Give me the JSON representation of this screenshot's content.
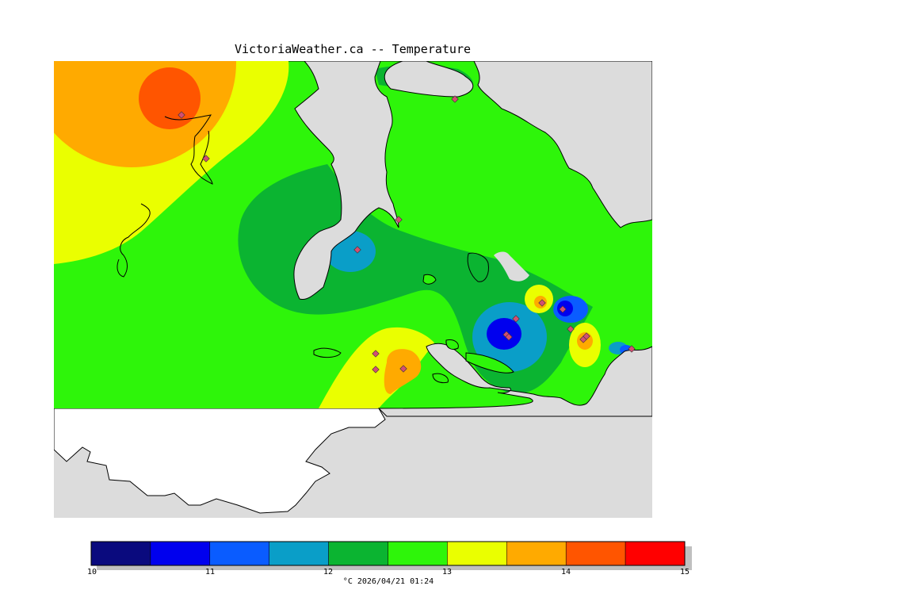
{
  "title": "VictoriaWeather.ca -- Temperature",
  "legend": {
    "ticks": [
      "10",
      "11",
      "12",
      "13",
      "14",
      "15"
    ],
    "bins": [
      {
        "from": 10.0,
        "to": 10.5,
        "color": "#0a0a7e"
      },
      {
        "from": 10.5,
        "to": 11.0,
        "color": "#0000ee"
      },
      {
        "from": 11.0,
        "to": 11.5,
        "color": "#0a5cff"
      },
      {
        "from": 11.5,
        "to": 12.0,
        "color": "#0a9ec8"
      },
      {
        "from": 12.0,
        "to": 12.5,
        "color": "#0bb431"
      },
      {
        "from": 12.5,
        "to": 13.0,
        "color": "#2ef50a"
      },
      {
        "from": 13.0,
        "to": 13.5,
        "color": "#eaff00"
      },
      {
        "from": 13.5,
        "to": 14.0,
        "color": "#ffaa00"
      },
      {
        "from": 14.0,
        "to": 14.5,
        "color": "#ff5500"
      },
      {
        "from": 14.5,
        "to": 15.0,
        "color": "#ff0000"
      }
    ],
    "units_and_time": "°C  2026/04/21 01:24"
  },
  "colors": {
    "land_no_data": "#ffffff",
    "water": "#dcdcdc",
    "coast": "#000000",
    "station": "#d24f72"
  },
  "station_count": 17
}
